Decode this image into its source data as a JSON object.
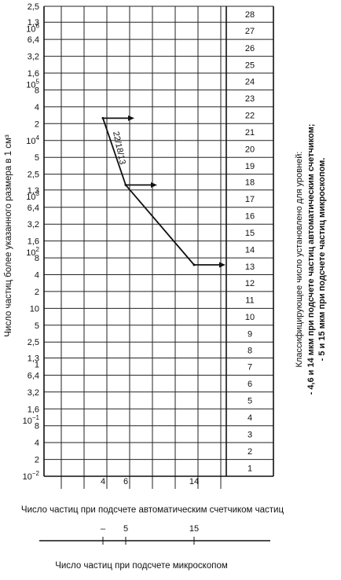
{
  "chart_data": {
    "type": "line",
    "y_scale": "log",
    "ylim": [
      0.01,
      2500000
    ],
    "ylabel": "Число частиц более указанного размера в 1 см³",
    "xlabel": "Число частиц при подсчете автоматическим счетчиком частиц",
    "xlabel_micro": "Число частиц при подсчете микроскопом",
    "x_ticks_auto": [
      "4",
      "6",
      "14"
    ],
    "x_ticks_micro": [
      "–",
      "5",
      "15"
    ],
    "y_tick_labels": [
      {
        "v": 2500000,
        "t": "2,5"
      },
      {
        "v": 1300000,
        "t": "1,3"
      },
      {
        "v": 1000000,
        "t": "10^6"
      },
      {
        "v": 640000,
        "t": "6,4"
      },
      {
        "v": 320000,
        "t": "3,2"
      },
      {
        "v": 160000,
        "t": "1,6"
      },
      {
        "v": 100000,
        "t": "10^5"
      },
      {
        "v": 80000,
        "t": "8"
      },
      {
        "v": 40000,
        "t": "4"
      },
      {
        "v": 20000,
        "t": "2"
      },
      {
        "v": 10000,
        "t": "10^4"
      },
      {
        "v": 5000,
        "t": "5"
      },
      {
        "v": 2500,
        "t": "2,5"
      },
      {
        "v": 1300,
        "t": "1,3"
      },
      {
        "v": 1000,
        "t": "10^3"
      },
      {
        "v": 640,
        "t": "6,4"
      },
      {
        "v": 320,
        "t": "3,2"
      },
      {
        "v": 160,
        "t": "1,6"
      },
      {
        "v": 100,
        "t": "10^2"
      },
      {
        "v": 80,
        "t": "8"
      },
      {
        "v": 40,
        "t": "4"
      },
      {
        "v": 20,
        "t": "2"
      },
      {
        "v": 10,
        "t": "10"
      },
      {
        "v": 5,
        "t": "5"
      },
      {
        "v": 2.5,
        "t": "2,5"
      },
      {
        "v": 1.3,
        "t": "1,3"
      },
      {
        "v": 1,
        "t": "1"
      },
      {
        "v": 0.64,
        "t": "6,4"
      },
      {
        "v": 0.32,
        "t": "3,2"
      },
      {
        "v": 0.16,
        "t": "1,6"
      },
      {
        "v": 0.1,
        "t": "10^-1"
      },
      {
        "v": 0.08,
        "t": "8"
      },
      {
        "v": 0.04,
        "t": "4"
      },
      {
        "v": 0.02,
        "t": "2"
      },
      {
        "v": 0.01,
        "t": "10^-2"
      }
    ],
    "level_boundaries": [
      0.01,
      0.02,
      0.04,
      0.08,
      0.16,
      0.32,
      0.64,
      1.3,
      2.5,
      5,
      10,
      20,
      40,
      80,
      160,
      320,
      640,
      1300,
      2500,
      5000,
      10000,
      20000,
      40000,
      80000,
      160000,
      320000,
      640000,
      1300000,
      2500000
    ],
    "levels": [
      "1",
      "2",
      "3",
      "4",
      "5",
      "6",
      "7",
      "8",
      "9",
      "10",
      "11",
      "12",
      "13",
      "14",
      "15",
      "16",
      "17",
      "18",
      "19",
      "20",
      "21",
      "22",
      "23",
      "24",
      "25",
      "26",
      "27",
      "28"
    ],
    "right_label_title": "Классифицирующее число установлено для уровней:",
    "right_label_line1": "- 4,6 и 14 мкм при подсчете частиц автоматическим счетчиком;",
    "right_label_line2": "- 5 и 15 мкм при подсчете частиц микроскопом.",
    "series": [
      {
        "x": [
          4,
          6,
          14
        ],
        "y": [
          25000,
          1600,
          60
        ]
      }
    ],
    "code_label": "22/18/13"
  }
}
